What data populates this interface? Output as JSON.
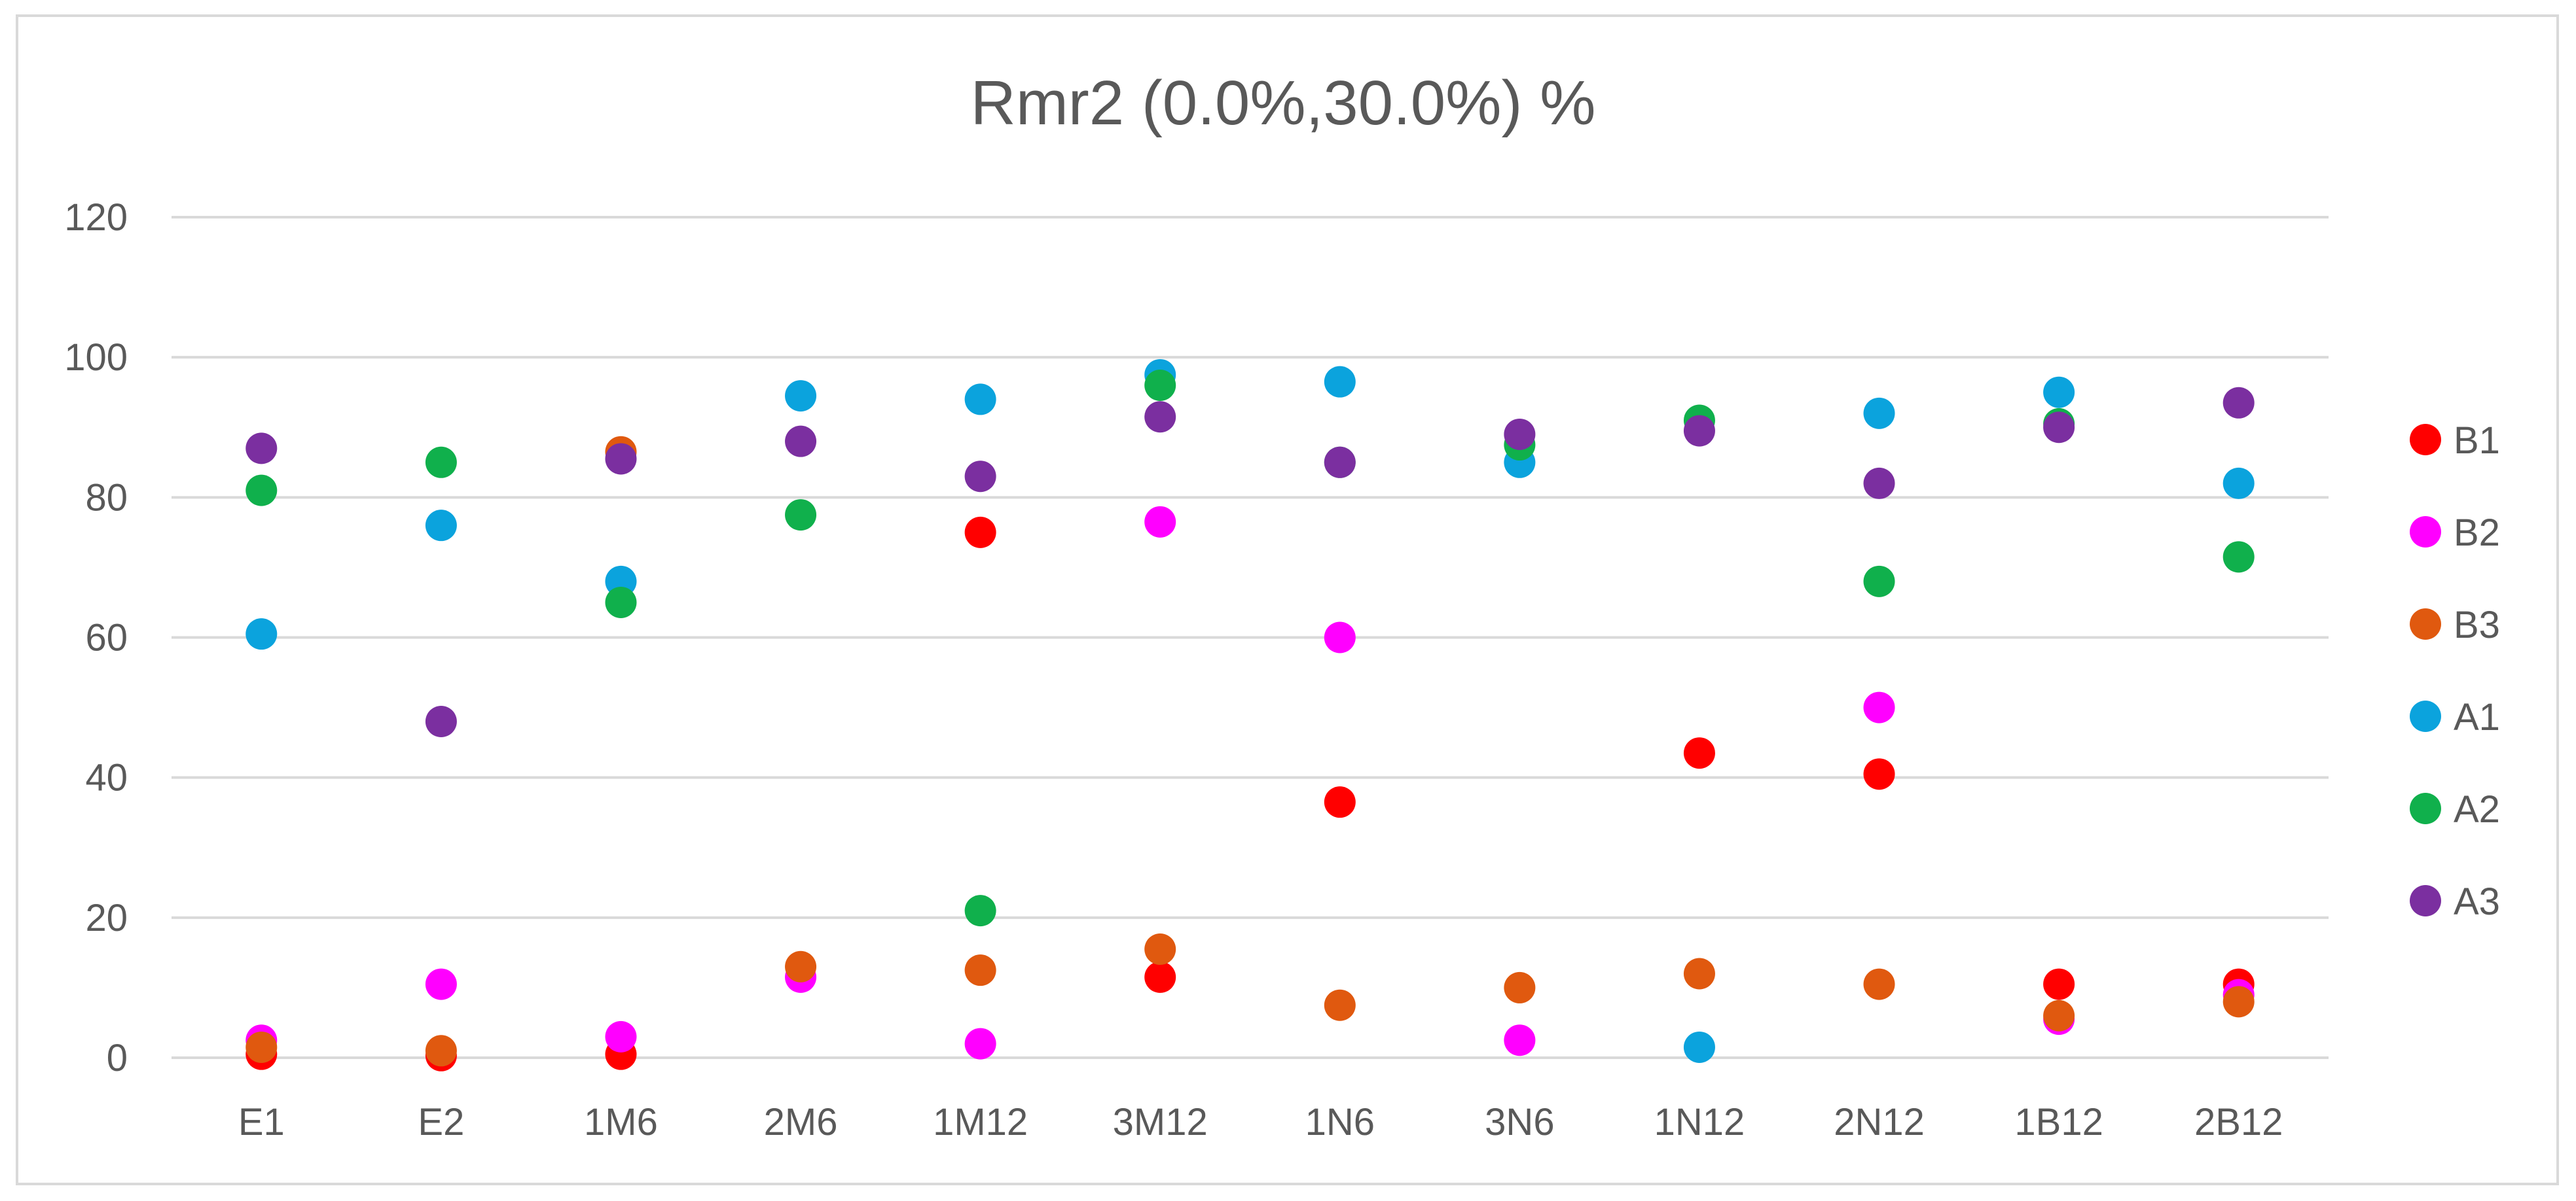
{
  "chart_data": {
    "type": "scatter",
    "title": "Rmr2 (0.0%,30.0%)  %",
    "xlabel": "",
    "ylabel": "",
    "categories": [
      "E1",
      "E2",
      "1M6",
      "2M6",
      "1M12",
      "3M12",
      "1N6",
      "3N6",
      "1N12",
      "2N12",
      "1B12",
      "2B12"
    ],
    "ylim": [
      0,
      120
    ],
    "yticks": [
      0,
      20,
      40,
      60,
      80,
      100,
      120
    ],
    "grid": true,
    "legend_position": "right",
    "series": [
      {
        "name": "B1",
        "color": "#ff0000",
        "values": [
          0.5,
          0.3,
          0.5,
          null,
          75,
          11.5,
          36.5,
          null,
          43.5,
          40.5,
          10.5,
          10.5
        ]
      },
      {
        "name": "B2",
        "color": "#ff00ff",
        "values": [
          2.5,
          10.5,
          3,
          11.5,
          2,
          76.5,
          60,
          2.5,
          null,
          50,
          5.5,
          9
        ]
      },
      {
        "name": "B3",
        "color": "#e0590f",
        "values": [
          1.5,
          1,
          86.5,
          13,
          12.5,
          15.5,
          7.5,
          10,
          12,
          10.5,
          6,
          8
        ]
      },
      {
        "name": "A1",
        "color": "#0ba3dd",
        "values": [
          60.5,
          76,
          68,
          94.5,
          94,
          97.5,
          96.5,
          85,
          1.5,
          92,
          95,
          82
        ]
      },
      {
        "name": "A2",
        "color": "#10b04c",
        "values": [
          81,
          85,
          65,
          77.5,
          21,
          96,
          85,
          87.5,
          91,
          68,
          90.5,
          71.5
        ]
      },
      {
        "name": "A3",
        "color": "#7b2fa0",
        "values": [
          87,
          48,
          85.5,
          88,
          83,
          91.5,
          85,
          89,
          89.5,
          82,
          90,
          93.5
        ]
      }
    ]
  }
}
